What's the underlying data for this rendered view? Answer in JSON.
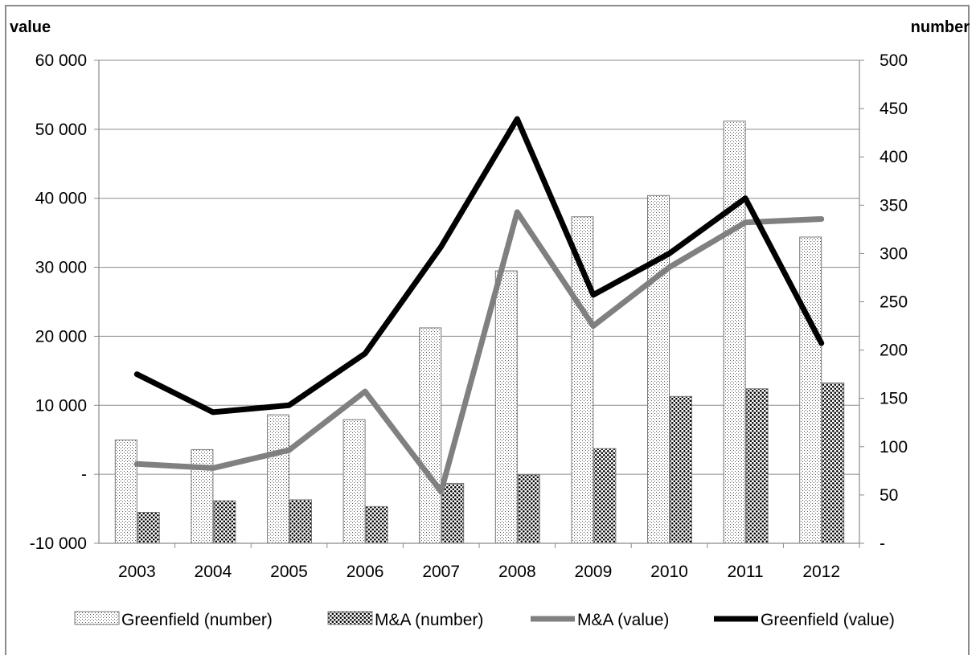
{
  "chart_data": {
    "type": "bar",
    "categories": [
      "2003",
      "2004",
      "2005",
      "2006",
      "2007",
      "2008",
      "2009",
      "2010",
      "2011",
      "2012"
    ],
    "y_left": {
      "label": "value",
      "range": [
        -10000,
        60000
      ],
      "ticks": [
        -10000,
        0,
        10000,
        20000,
        30000,
        40000,
        50000,
        60000
      ],
      "tick_labels": [
        "-10 000",
        "-",
        "10 000",
        "20 000",
        "30 000",
        "40 000",
        "50 000",
        "60 000"
      ]
    },
    "y_right": {
      "label": "number",
      "range": [
        0,
        500
      ],
      "ticks": [
        0,
        50,
        100,
        150,
        200,
        250,
        300,
        350,
        400,
        450,
        500
      ],
      "tick_labels": [
        "-",
        "50",
        "100",
        "150",
        "200",
        "250",
        "300",
        "350",
        "400",
        "450",
        "500"
      ]
    },
    "grid": true,
    "legend_position": "bottom",
    "series": [
      {
        "name": "Greenfield (number)",
        "kind": "bar",
        "axis": "right",
        "pattern": "light-dots",
        "values": [
          107,
          97,
          133,
          128,
          223,
          282,
          338,
          360,
          437,
          317
        ]
      },
      {
        "name": "M&A (number)",
        "kind": "bar",
        "axis": "right",
        "pattern": "dense-dots",
        "values": [
          32,
          44,
          45,
          38,
          62,
          71,
          98,
          152,
          160,
          166
        ]
      },
      {
        "name": "M&A (value)",
        "kind": "line",
        "axis": "left",
        "color": "#808080",
        "values": [
          1500,
          900,
          3500,
          12000,
          -2500,
          38000,
          21500,
          30000,
          36500,
          37000
        ]
      },
      {
        "name": "Greenfield (value)",
        "kind": "line",
        "axis": "left",
        "color": "#000000",
        "values": [
          14500,
          9000,
          10000,
          17500,
          33000,
          51500,
          26000,
          32000,
          40000,
          19000
        ]
      }
    ]
  }
}
